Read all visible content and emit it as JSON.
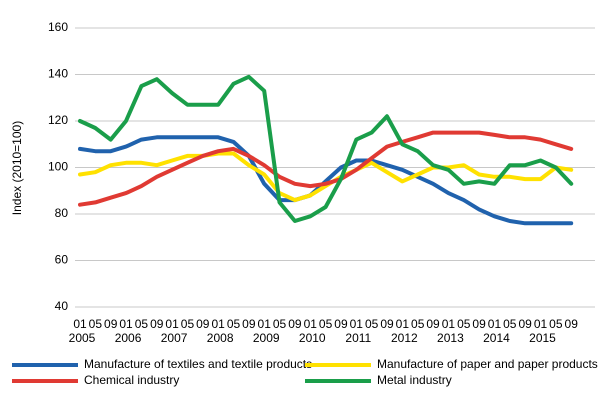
{
  "chart_data": {
    "type": "line",
    "y_label": "Index (2010=100)",
    "categories": [
      "01",
      "05",
      "09",
      "01",
      "05",
      "09",
      "01",
      "05",
      "09",
      "01",
      "05",
      "09",
      "01",
      "05",
      "09",
      "01",
      "05",
      "09",
      "01",
      "05",
      "09",
      "01",
      "05",
      "09",
      "01",
      "05",
      "09",
      "01",
      "05",
      "09",
      "01",
      "05",
      "09"
    ],
    "years": [
      "2005",
      "2006",
      "2007",
      "2008",
      "2009",
      "2010",
      "2011",
      "2012",
      "2013",
      "2014",
      "2015"
    ],
    "ylim": [
      40,
      160
    ],
    "yticks": [
      40,
      60,
      80,
      100,
      120,
      140,
      160
    ],
    "grid": true,
    "legend": "bottom",
    "series": [
      {
        "name": "Manufacture of textiles and textile products",
        "color": "#2062ad",
        "values": [
          108,
          107,
          107,
          109,
          112,
          113,
          113,
          113,
          113,
          113,
          111,
          105,
          93,
          86,
          86,
          88,
          94,
          100,
          103,
          103,
          101,
          99,
          96,
          93,
          89,
          86,
          82,
          79,
          77,
          76,
          76,
          76,
          76
        ]
      },
      {
        "name": "Manufacture of paper and paper products",
        "color": "#ffe100",
        "values": [
          97,
          98,
          101,
          102,
          102,
          101,
          103,
          105,
          105,
          106,
          106,
          101,
          97,
          89,
          86,
          88,
          92,
          96,
          99,
          102,
          98,
          94,
          97,
          100,
          100,
          101,
          97,
          96,
          96,
          95,
          95,
          100,
          99
        ]
      },
      {
        "name": "Chemical industry",
        "color": "#e03a33",
        "values": [
          84,
          85,
          87,
          89,
          92,
          96,
          99,
          102,
          105,
          107,
          108,
          105,
          101,
          96,
          93,
          92,
          93,
          95,
          99,
          104,
          109,
          111,
          113,
          115,
          115,
          115,
          115,
          114,
          113,
          113,
          112,
          110,
          108
        ]
      },
      {
        "name": "Metal industry",
        "color": "#1a9e4a",
        "values": [
          120,
          117,
          112,
          120,
          135,
          138,
          132,
          127,
          127,
          127,
          136,
          139,
          133,
          85,
          77,
          79,
          83,
          95,
          112,
          115,
          122,
          110,
          107,
          101,
          99,
          93,
          94,
          93,
          101,
          101,
          103,
          100,
          93
        ]
      }
    ]
  }
}
